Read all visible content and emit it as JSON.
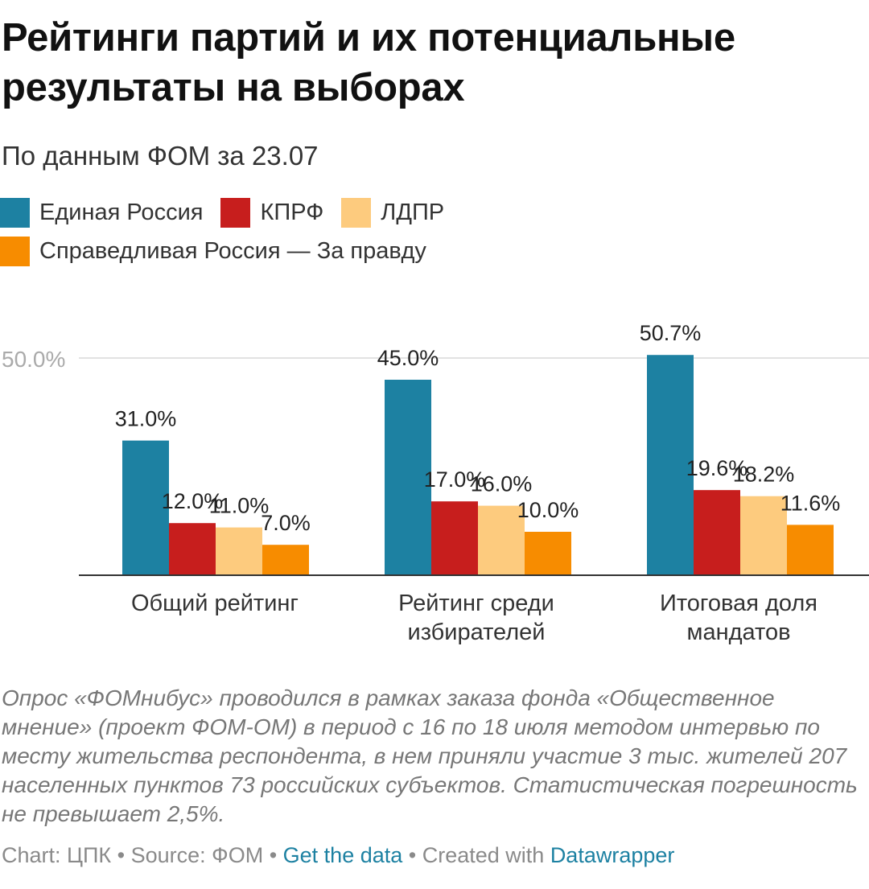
{
  "header": {
    "title": "Рейтинги партий и их потенциальные результаты на выборах",
    "subtitle": "По данным ФОМ за 23.07"
  },
  "legend": [
    {
      "label": "Единая Россия",
      "color": "#1d81a2"
    },
    {
      "label": "КПРФ",
      "color": "#c71e1d"
    },
    {
      "label": "ЛДПР",
      "color": "#fdcb7e"
    },
    {
      "label": "Справедливая Россия — За правду",
      "color": "#f78c00"
    }
  ],
  "chart_data": {
    "type": "bar",
    "categories": [
      "Общий рейтинг",
      "Рейтинг среди избирателей",
      "Итоговая доля мандатов"
    ],
    "category_lines": [
      [
        "Общий рейтинг"
      ],
      [
        "Рейтинг среди",
        "избирателей"
      ],
      [
        "Итоговая доля",
        "мандатов"
      ]
    ],
    "series": [
      {
        "name": "Единая Россия",
        "color": "#1d81a2",
        "values": [
          31.0,
          45.0,
          50.7
        ]
      },
      {
        "name": "КПРФ",
        "color": "#c71e1d",
        "values": [
          12.0,
          17.0,
          19.6
        ]
      },
      {
        "name": "ЛДПР",
        "color": "#fdcb7e",
        "values": [
          11.0,
          16.0,
          18.2
        ]
      },
      {
        "name": "Справедливая Россия — За правду",
        "color": "#f78c00",
        "values": [
          7.0,
          10.0,
          11.6
        ]
      }
    ],
    "value_labels": [
      [
        "31.0%",
        "12.0%",
        "11.0%",
        "7.0%"
      ],
      [
        "45.0%",
        "17.0%",
        "16.0%",
        "10.0%"
      ],
      [
        "50.7%",
        "19.6%",
        "18.2%",
        "11.6%"
      ]
    ],
    "y_gridlines": [
      50
    ],
    "y_tick_labels": [
      "50.0%"
    ],
    "ylim": [
      0,
      50.7
    ],
    "legend_position": "top"
  },
  "notes": "Опрос «ФОМнибус» проводился в рамках заказа фонда «Общественное мнение» (проект ФОМ-ОМ) в период с 16 по 18 июля методом интервью по месту жительства респондента, в нем приняли участие 3 тыс. жителей 207 населенных пунктов 73 российских субъектов. Статистическая погрешность не превышает 2,5%.",
  "footer": {
    "chart_by": "Chart: ЦПК",
    "sep1": " • ",
    "source": "Source: ФОМ",
    "sep2": " • ",
    "get_data": "Get the data",
    "sep3": " • ",
    "created_with": "Created with ",
    "tool": "Datawrapper"
  }
}
